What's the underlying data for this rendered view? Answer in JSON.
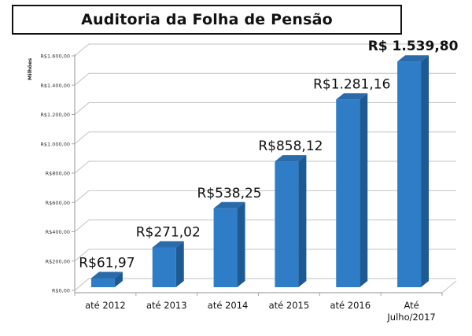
{
  "title": "Auditoria da Folha de Pensão",
  "chart_data": {
    "type": "bar",
    "style": "3d-column",
    "title": "Auditoria da Folha de Pensão",
    "xlabel": "",
    "ylabel": "Milhões",
    "ylim": [
      0,
      1600
    ],
    "yticks": [
      0,
      200,
      400,
      600,
      800,
      1000,
      1200,
      1400,
      1600
    ],
    "ytick_labels": [
      "R$0,00",
      "R$200,00",
      "R$400,00",
      "R$600,00",
      "R$800,00",
      "R$1.000,00",
      "R$1.200,00",
      "R$1.400,00",
      "R$1.600,00"
    ],
    "categories": [
      "até 2012",
      "até 2013",
      "até 2014",
      "até 2015",
      "até 2016",
      "Até Julho/2017"
    ],
    "category_lines": [
      [
        "até 2012"
      ],
      [
        "até 2013"
      ],
      [
        "até 2014"
      ],
      [
        "até 2015"
      ],
      [
        "até 2016"
      ],
      [
        "Até",
        "Julho/2017"
      ]
    ],
    "values": [
      61.97,
      271.02,
      538.25,
      858.12,
      1281.16,
      1539.8
    ],
    "data_labels": [
      "R$61,97",
      "R$271,02",
      "R$538,25",
      "R$858,12",
      "R$1.281,16",
      "R$ 1.539,80"
    ],
    "grid": true,
    "legend": null,
    "colors": {
      "bar_front": "#2e7dc6",
      "bar_side": "#1d5a94",
      "bar_top": "#2a6aa8",
      "grid": "#c0c0c0",
      "axis": "#a6a6a6"
    }
  }
}
